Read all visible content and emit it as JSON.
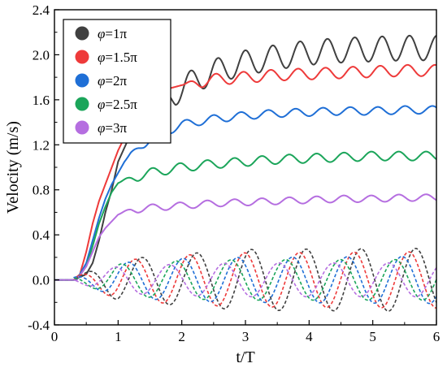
{
  "chart_data": {
    "type": "line",
    "xlabel": "t/T",
    "ylabel": "Velocity (m/s)",
    "xlim": [
      0,
      6
    ],
    "ylim": [
      -0.4,
      2.4
    ],
    "x_ticks": [
      "0",
      "1",
      "2",
      "3",
      "4",
      "5",
      "6"
    ],
    "y_ticks": [
      "-0.4",
      "0.0",
      "0.4",
      "0.8",
      "1.2",
      "1.6",
      "2.0",
      "2.4"
    ],
    "grid": false,
    "legend_position": "top-left",
    "legend": [
      {
        "symbol": "φ",
        "value": "=1π",
        "color": "#404040"
      },
      {
        "symbol": "φ",
        "value": "=1.5π",
        "color": "#ee3a3a"
      },
      {
        "symbol": "φ",
        "value": "=2π",
        "color": "#1f6fd6"
      },
      {
        "symbol": "φ",
        "value": "=2.5π",
        "color": "#1ba55a"
      },
      {
        "symbol": "φ",
        "value": "=3π",
        "color": "#b56ee0"
      }
    ],
    "series": [
      {
        "color": "#404040",
        "style": "solid",
        "x": [
          0,
          0.3,
          0.5,
          0.6,
          0.7,
          0.8,
          0.9,
          1.0,
          1.2,
          1.4,
          1.6,
          1.8,
          2.0,
          2.2,
          2.5,
          2.8,
          3.0,
          3.5,
          4.0,
          4.5,
          5.0,
          5.5,
          6.0
        ],
        "y": [
          0,
          0,
          0.05,
          0.15,
          0.35,
          0.6,
          0.8,
          1.05,
          1.3,
          1.45,
          1.55,
          1.62,
          1.7,
          1.77,
          1.85,
          1.9,
          1.93,
          1.98,
          2.02,
          2.04,
          2.05,
          2.06,
          2.06
        ],
        "osc_amp": 0.11,
        "osc_period": 0.43,
        "osc_start": 1.6
      },
      {
        "color": "#ee3a3a",
        "style": "solid",
        "x": [
          0,
          0.3,
          0.4,
          0.5,
          0.6,
          0.7,
          0.8,
          0.9,
          1.0,
          1.2,
          1.4,
          1.6,
          1.8,
          2.0,
          2.5,
          3.0,
          3.5,
          4.0,
          4.5,
          5.0,
          5.5,
          6.0
        ],
        "y": [
          0,
          0,
          0.05,
          0.25,
          0.5,
          0.7,
          0.85,
          1.0,
          1.15,
          1.38,
          1.55,
          1.64,
          1.7,
          1.73,
          1.78,
          1.8,
          1.82,
          1.83,
          1.84,
          1.85,
          1.86,
          1.86
        ],
        "osc_amp": 0.05,
        "osc_period": 0.43,
        "osc_start": 2.0
      },
      {
        "color": "#1f6fd6",
        "style": "solid",
        "x": [
          0,
          0.35,
          0.5,
          0.6,
          0.7,
          0.8,
          0.9,
          1.0,
          1.1,
          1.2,
          1.5,
          2.0,
          2.5,
          3.0,
          3.5,
          4.0,
          4.5,
          5.0,
          5.5,
          6.0
        ],
        "y": [
          0,
          0,
          0.15,
          0.35,
          0.55,
          0.72,
          0.85,
          0.95,
          1.05,
          1.12,
          1.25,
          1.38,
          1.43,
          1.46,
          1.48,
          1.49,
          1.5,
          1.5,
          1.51,
          1.51
        ],
        "osc_amp": 0.035,
        "osc_period": 0.43,
        "osc_start": 1.1
      },
      {
        "color": "#1ba55a",
        "style": "solid",
        "x": [
          0,
          0.35,
          0.5,
          0.6,
          0.7,
          0.8,
          0.9,
          1.0,
          1.2,
          1.5,
          2.0,
          2.5,
          3.0,
          3.5,
          4.0,
          4.5,
          5.0,
          5.5,
          6.0
        ],
        "y": [
          0,
          0,
          0.12,
          0.3,
          0.5,
          0.65,
          0.78,
          0.86,
          0.9,
          0.95,
          1.0,
          1.03,
          1.05,
          1.07,
          1.08,
          1.09,
          1.1,
          1.1,
          1.1
        ],
        "osc_amp": 0.04,
        "osc_period": 0.43,
        "osc_start": 1.0
      },
      {
        "color": "#b56ee0",
        "style": "solid",
        "x": [
          0,
          0.35,
          0.5,
          0.6,
          0.7,
          0.8,
          0.9,
          1.0,
          1.2,
          1.5,
          2.0,
          2.5,
          3.0,
          3.5,
          4.0,
          4.5,
          5.0,
          5.5,
          6.0
        ],
        "y": [
          0,
          0,
          0.12,
          0.25,
          0.38,
          0.46,
          0.52,
          0.58,
          0.62,
          0.64,
          0.66,
          0.68,
          0.69,
          0.7,
          0.71,
          0.72,
          0.72,
          0.73,
          0.73
        ],
        "osc_amp": 0.03,
        "osc_period": 0.43,
        "osc_start": 1.0
      },
      {
        "color": "#404040",
        "style": "dashed",
        "amp_x": [
          0,
          0.3,
          1.0,
          2.0,
          3.0,
          6.0
        ],
        "amp_y": [
          0,
          0.02,
          0.18,
          0.23,
          0.27,
          0.28
        ],
        "phase": 0.0,
        "period": 0.86
      },
      {
        "color": "#ee3a3a",
        "style": "dashed",
        "amp_x": [
          0,
          0.3,
          1.0,
          2.0,
          3.0,
          6.0
        ],
        "amp_y": [
          0,
          0.02,
          0.17,
          0.22,
          0.24,
          0.25
        ],
        "phase": 0.785,
        "period": 0.86
      },
      {
        "color": "#1f6fd6",
        "style": "dashed",
        "amp_x": [
          0,
          0.3,
          1.0,
          2.0,
          3.0,
          6.0
        ],
        "amp_y": [
          0,
          0.02,
          0.15,
          0.19,
          0.2,
          0.21
        ],
        "phase": 1.571,
        "period": 0.86
      },
      {
        "color": "#1ba55a",
        "style": "dashed",
        "amp_x": [
          0,
          0.3,
          1.0,
          2.0,
          3.0,
          6.0
        ],
        "amp_y": [
          0,
          0.02,
          0.14,
          0.17,
          0.18,
          0.18
        ],
        "phase": 2.356,
        "period": 0.86
      },
      {
        "color": "#b56ee0",
        "style": "dashed",
        "amp_x": [
          0,
          0.3,
          1.0,
          2.0,
          3.0,
          6.0
        ],
        "amp_y": [
          0,
          0.02,
          0.12,
          0.14,
          0.15,
          0.15
        ],
        "phase": 3.142,
        "period": 0.86
      }
    ]
  }
}
